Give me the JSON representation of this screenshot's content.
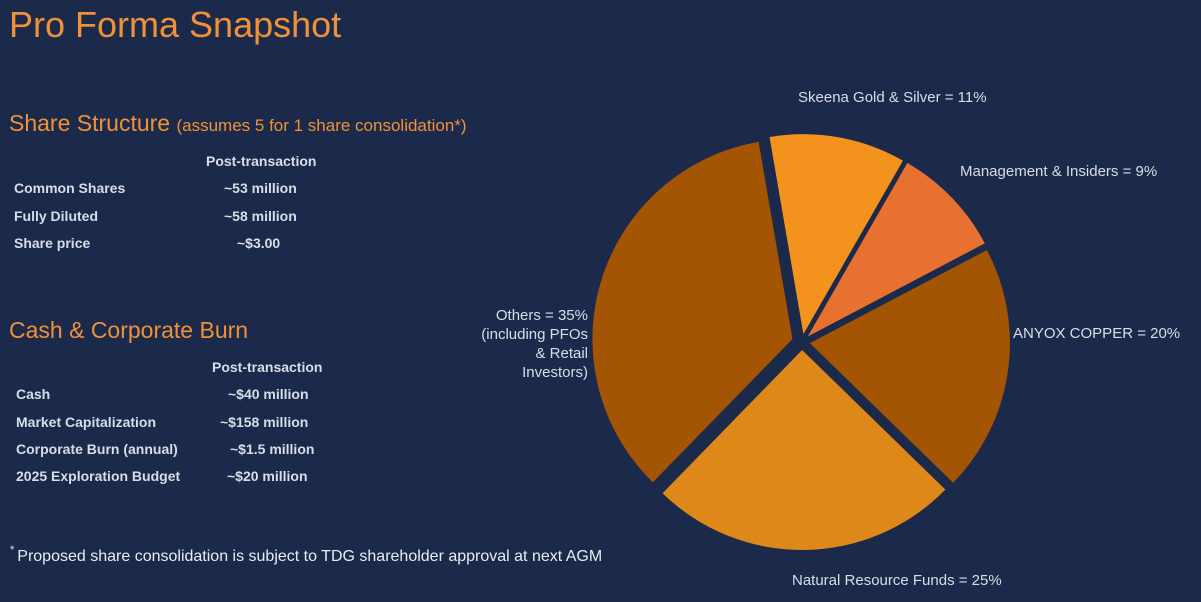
{
  "title": "Pro Forma Snapshot",
  "share_structure": {
    "heading": "Share Structure",
    "subheading": "(assumes 5 for 1 share consolidation*)",
    "column_header": "Post-transaction",
    "rows": [
      {
        "label": "Common Shares",
        "value": "~53 million"
      },
      {
        "label": "Fully Diluted",
        "value": "~58 million"
      },
      {
        "label": "Share price",
        "value": "~$3.00"
      }
    ]
  },
  "cash_burn": {
    "heading": "Cash & Corporate Burn",
    "column_header": "Post-transaction",
    "rows": [
      {
        "label": "Cash",
        "value": "~$40 million"
      },
      {
        "label": "Market Capitalization",
        "value": "~$158 million"
      },
      {
        "label": "Corporate Burn (annual)",
        "value": "~$1.5 million"
      },
      {
        "label": "2025 Exploration Budget",
        "value": "~$20 million"
      }
    ]
  },
  "footnote": {
    "marker": "*",
    "text": "Proposed share consolidation is subject to TDG shareholder approval at next AGM"
  },
  "chart_data": {
    "type": "pie",
    "title": "",
    "slices": [
      {
        "label": "Skeena Gold & Silver = 11%",
        "value": 11,
        "color": "#f4921e"
      },
      {
        "label": "Management & Insiders = 9%",
        "value": 9,
        "color": "#e87131"
      },
      {
        "label": "ANYOX COPPER = 20%",
        "value": 20,
        "color": "#a45503"
      },
      {
        "label": "Natural Resource Funds = 25%",
        "value": 25,
        "color": "#dd8818"
      },
      {
        "label_lines": [
          "Others = 35%",
          "(including PFOs",
          "& Retail",
          "Investors)"
        ],
        "value": 35,
        "color": "#a45503"
      }
    ]
  }
}
